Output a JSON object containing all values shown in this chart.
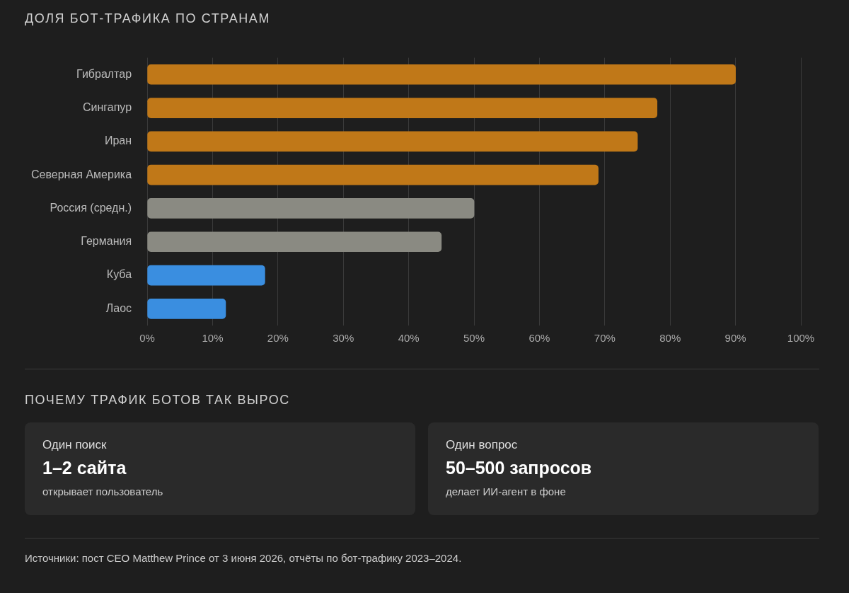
{
  "chart_data": [
    {
      "type": "bar",
      "orientation": "horizontal",
      "title": "ДОЛЯ БОТ-ТРАФИКА ПО СТРАНАМ",
      "categories": [
        "Гибралтар",
        "Сингапур",
        "Иран",
        "Северная Америка",
        "Россия (средн.)",
        "Германия",
        "Куба",
        "Лаос"
      ],
      "values": [
        90,
        78,
        75,
        69,
        50,
        45,
        18,
        12
      ],
      "colors": [
        "#c07818",
        "#c07818",
        "#c07818",
        "#c07818",
        "#8a8a82",
        "#8a8a82",
        "#3a8ee0",
        "#3a8ee0"
      ],
      "xlim": [
        0,
        100
      ],
      "xticks": [
        {
          "value": 0,
          "label": "0%"
        },
        {
          "value": 10,
          "label": "10%"
        },
        {
          "value": 20,
          "label": "20%"
        },
        {
          "value": 30,
          "label": "30%"
        },
        {
          "value": 40,
          "label": "40%"
        },
        {
          "value": 50,
          "label": "50%"
        },
        {
          "value": 60,
          "label": "60%"
        },
        {
          "value": 70,
          "label": "70%"
        },
        {
          "value": 80,
          "label": "80%"
        },
        {
          "value": 90,
          "label": "90%"
        },
        {
          "value": 100,
          "label": "100%"
        }
      ],
      "grid": "x",
      "annotations": [
        "Источники: пост CEO Matthew Prince от 3 июня 2026, отчёты по бот-трафику 2023–2024."
      ]
    },
    {
      "type": "other",
      "title": "ПОЧЕМУ ТРАФИК БОТОВ ТАК ВЫРОС",
      "annotations": [
        "Один поиск",
        "1–2 сайта",
        "открывает пользователь",
        "Один вопрос",
        "50–500 запросов",
        "делает ИИ-агент в фоне"
      ]
    }
  ]
}
